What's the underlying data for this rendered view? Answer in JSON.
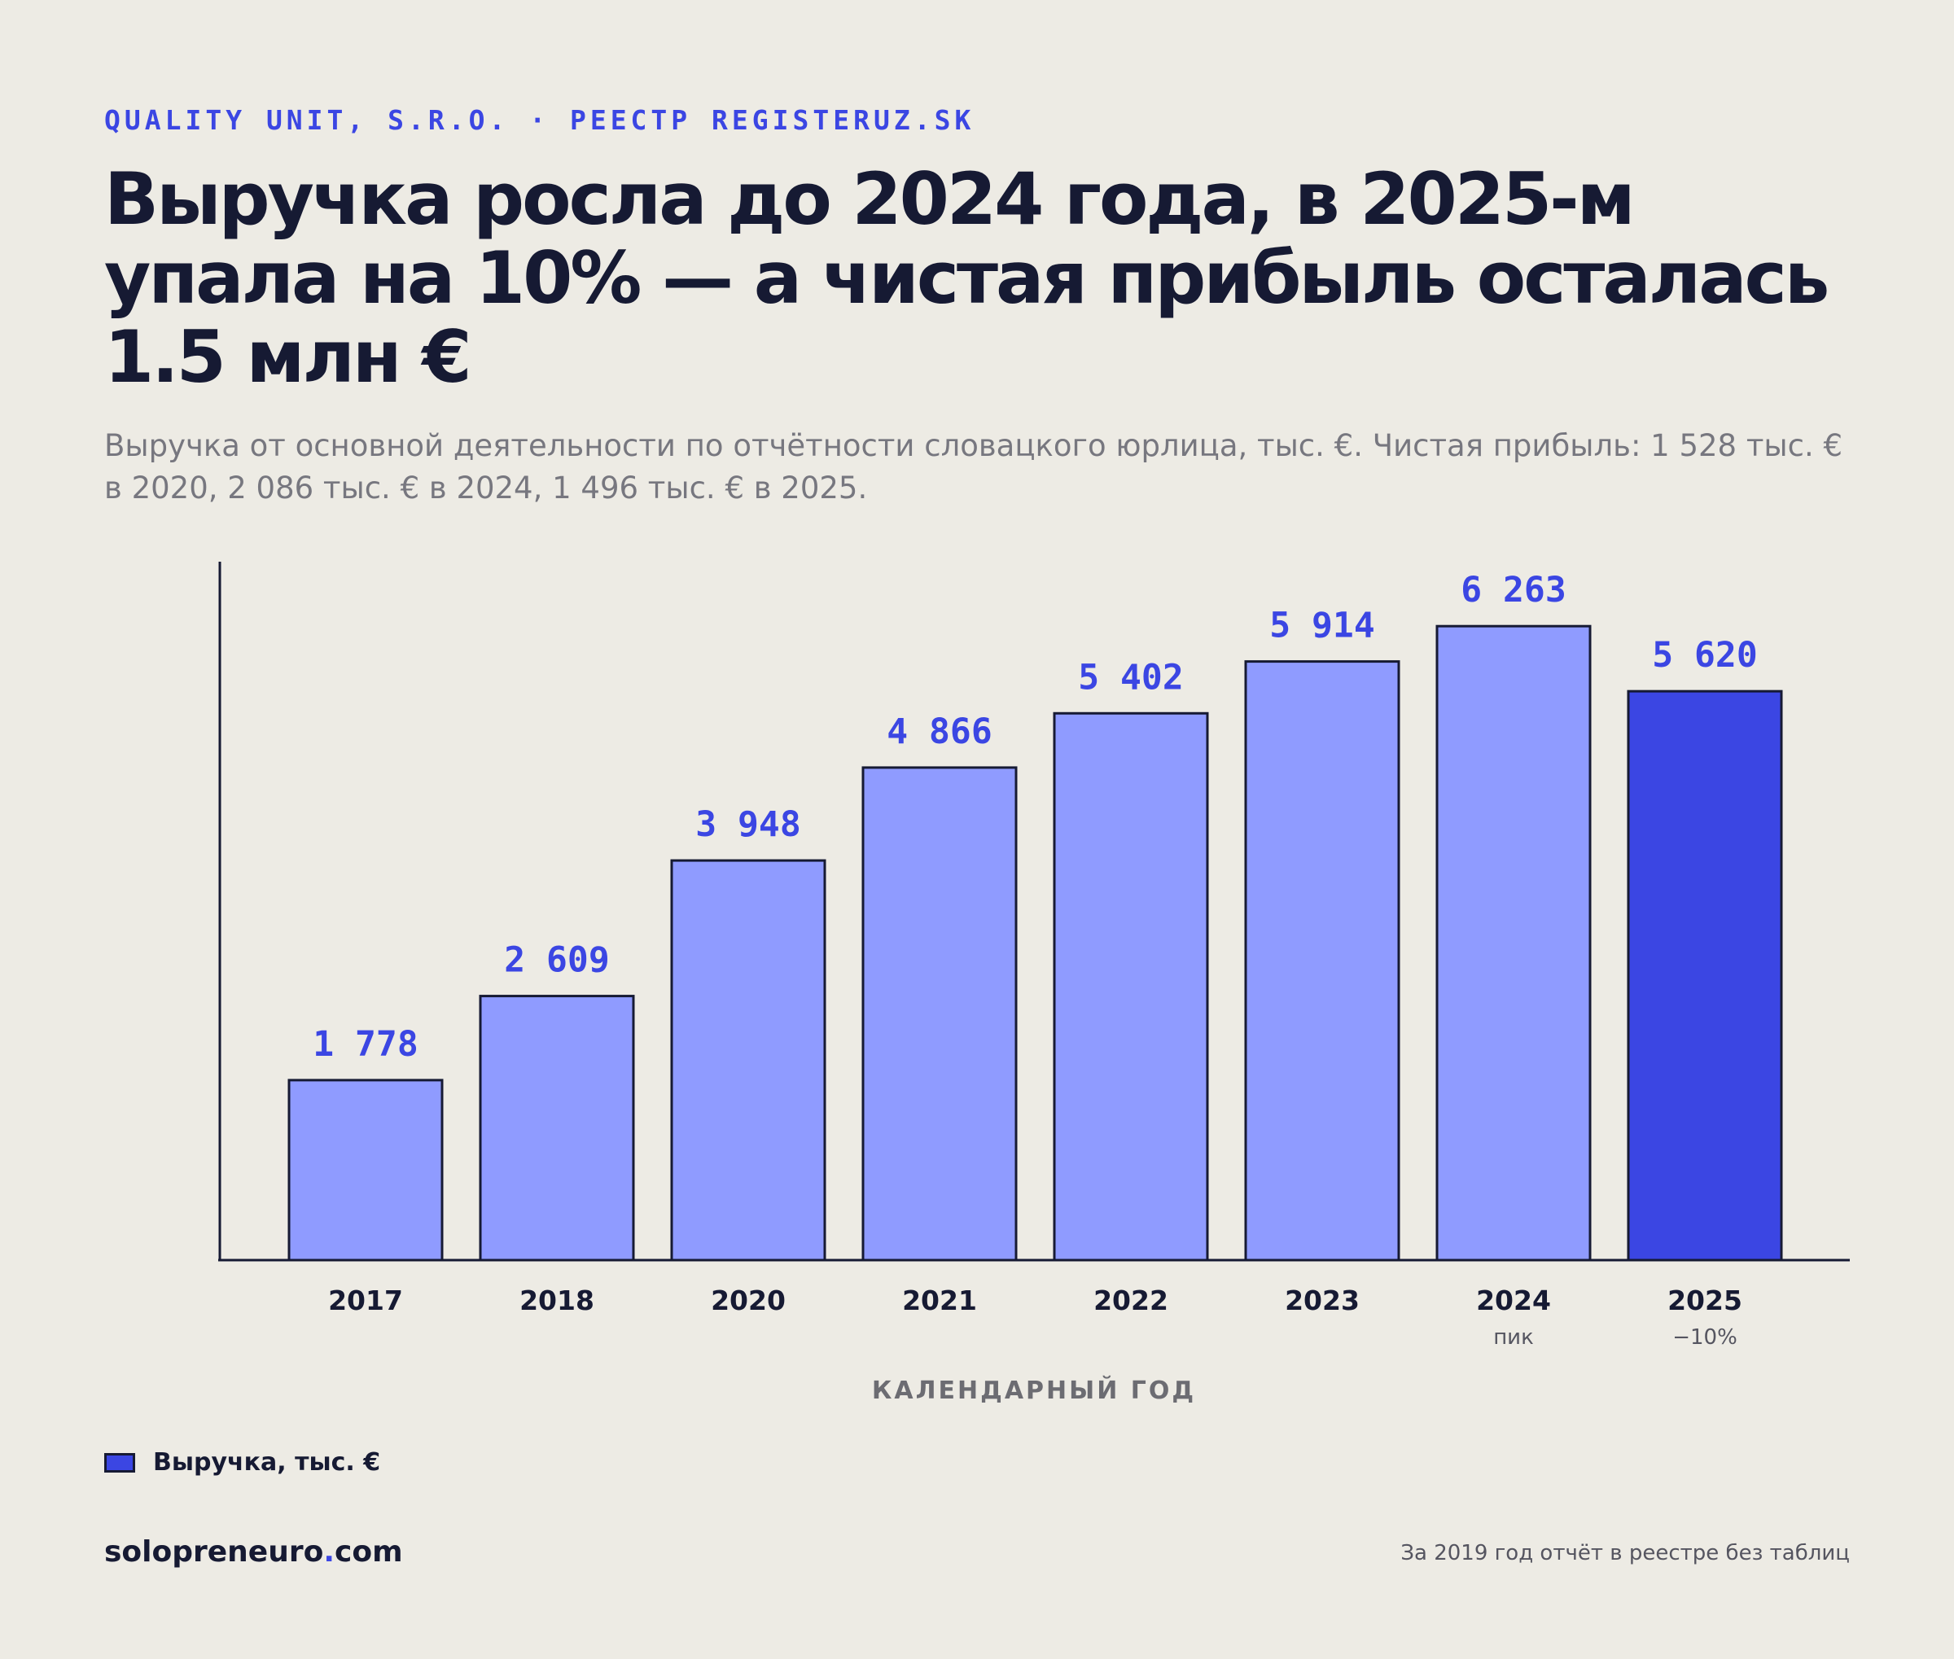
{
  "header": {
    "kicker": "QUALITY UNIT, S.R.O. · РЕЕСТР REGISTERUZ.SK",
    "title": "Выручка росла до 2024 года, в 2025-м упала на 10% — а чистая прибыль осталась 1.5 млн €",
    "subtitle": "Выручка от основной деятельности по отчётности словацкого юрлица, тыс. €. Чистая прибыль: 1 528 тыс. € в 2020, 2 086 тыс. € в 2024, 1 496 тыс. € в 2025."
  },
  "chart_data": {
    "type": "bar",
    "categories": [
      "2017",
      "2018",
      "2020",
      "2021",
      "2022",
      "2023",
      "2024",
      "2025"
    ],
    "category_notes": [
      "",
      "",
      "",
      "",
      "",
      "",
      "пик",
      "−10%"
    ],
    "series": [
      {
        "name": "Выручка, тыс. €",
        "values": [
          1778,
          2609,
          3948,
          4866,
          5402,
          5914,
          6263,
          5620
        ],
        "labels": [
          "1 778",
          "2 609",
          "3 948",
          "4 866",
          "5 402",
          "5 914",
          "6 263",
          "5 620"
        ]
      }
    ],
    "xlabel": "КАЛЕНДАРНЫЙ ГОД",
    "ylabel": "",
    "ylim": [
      0,
      6900
    ],
    "grid": false,
    "legend_position": "bottom-left",
    "colors": {
      "bar": "#8f9bff",
      "highlight": "#3b46e3",
      "stroke": "#161a33",
      "label": "#3b46e3"
    },
    "highlight_index": 7
  },
  "legend": {
    "label": "Выручка, тыс. €"
  },
  "footer": {
    "brand_main": "solopreneuro",
    "brand_dot": ".",
    "brand_tld": "com",
    "note": "За 2019 год отчёт в реестре без таблиц"
  }
}
